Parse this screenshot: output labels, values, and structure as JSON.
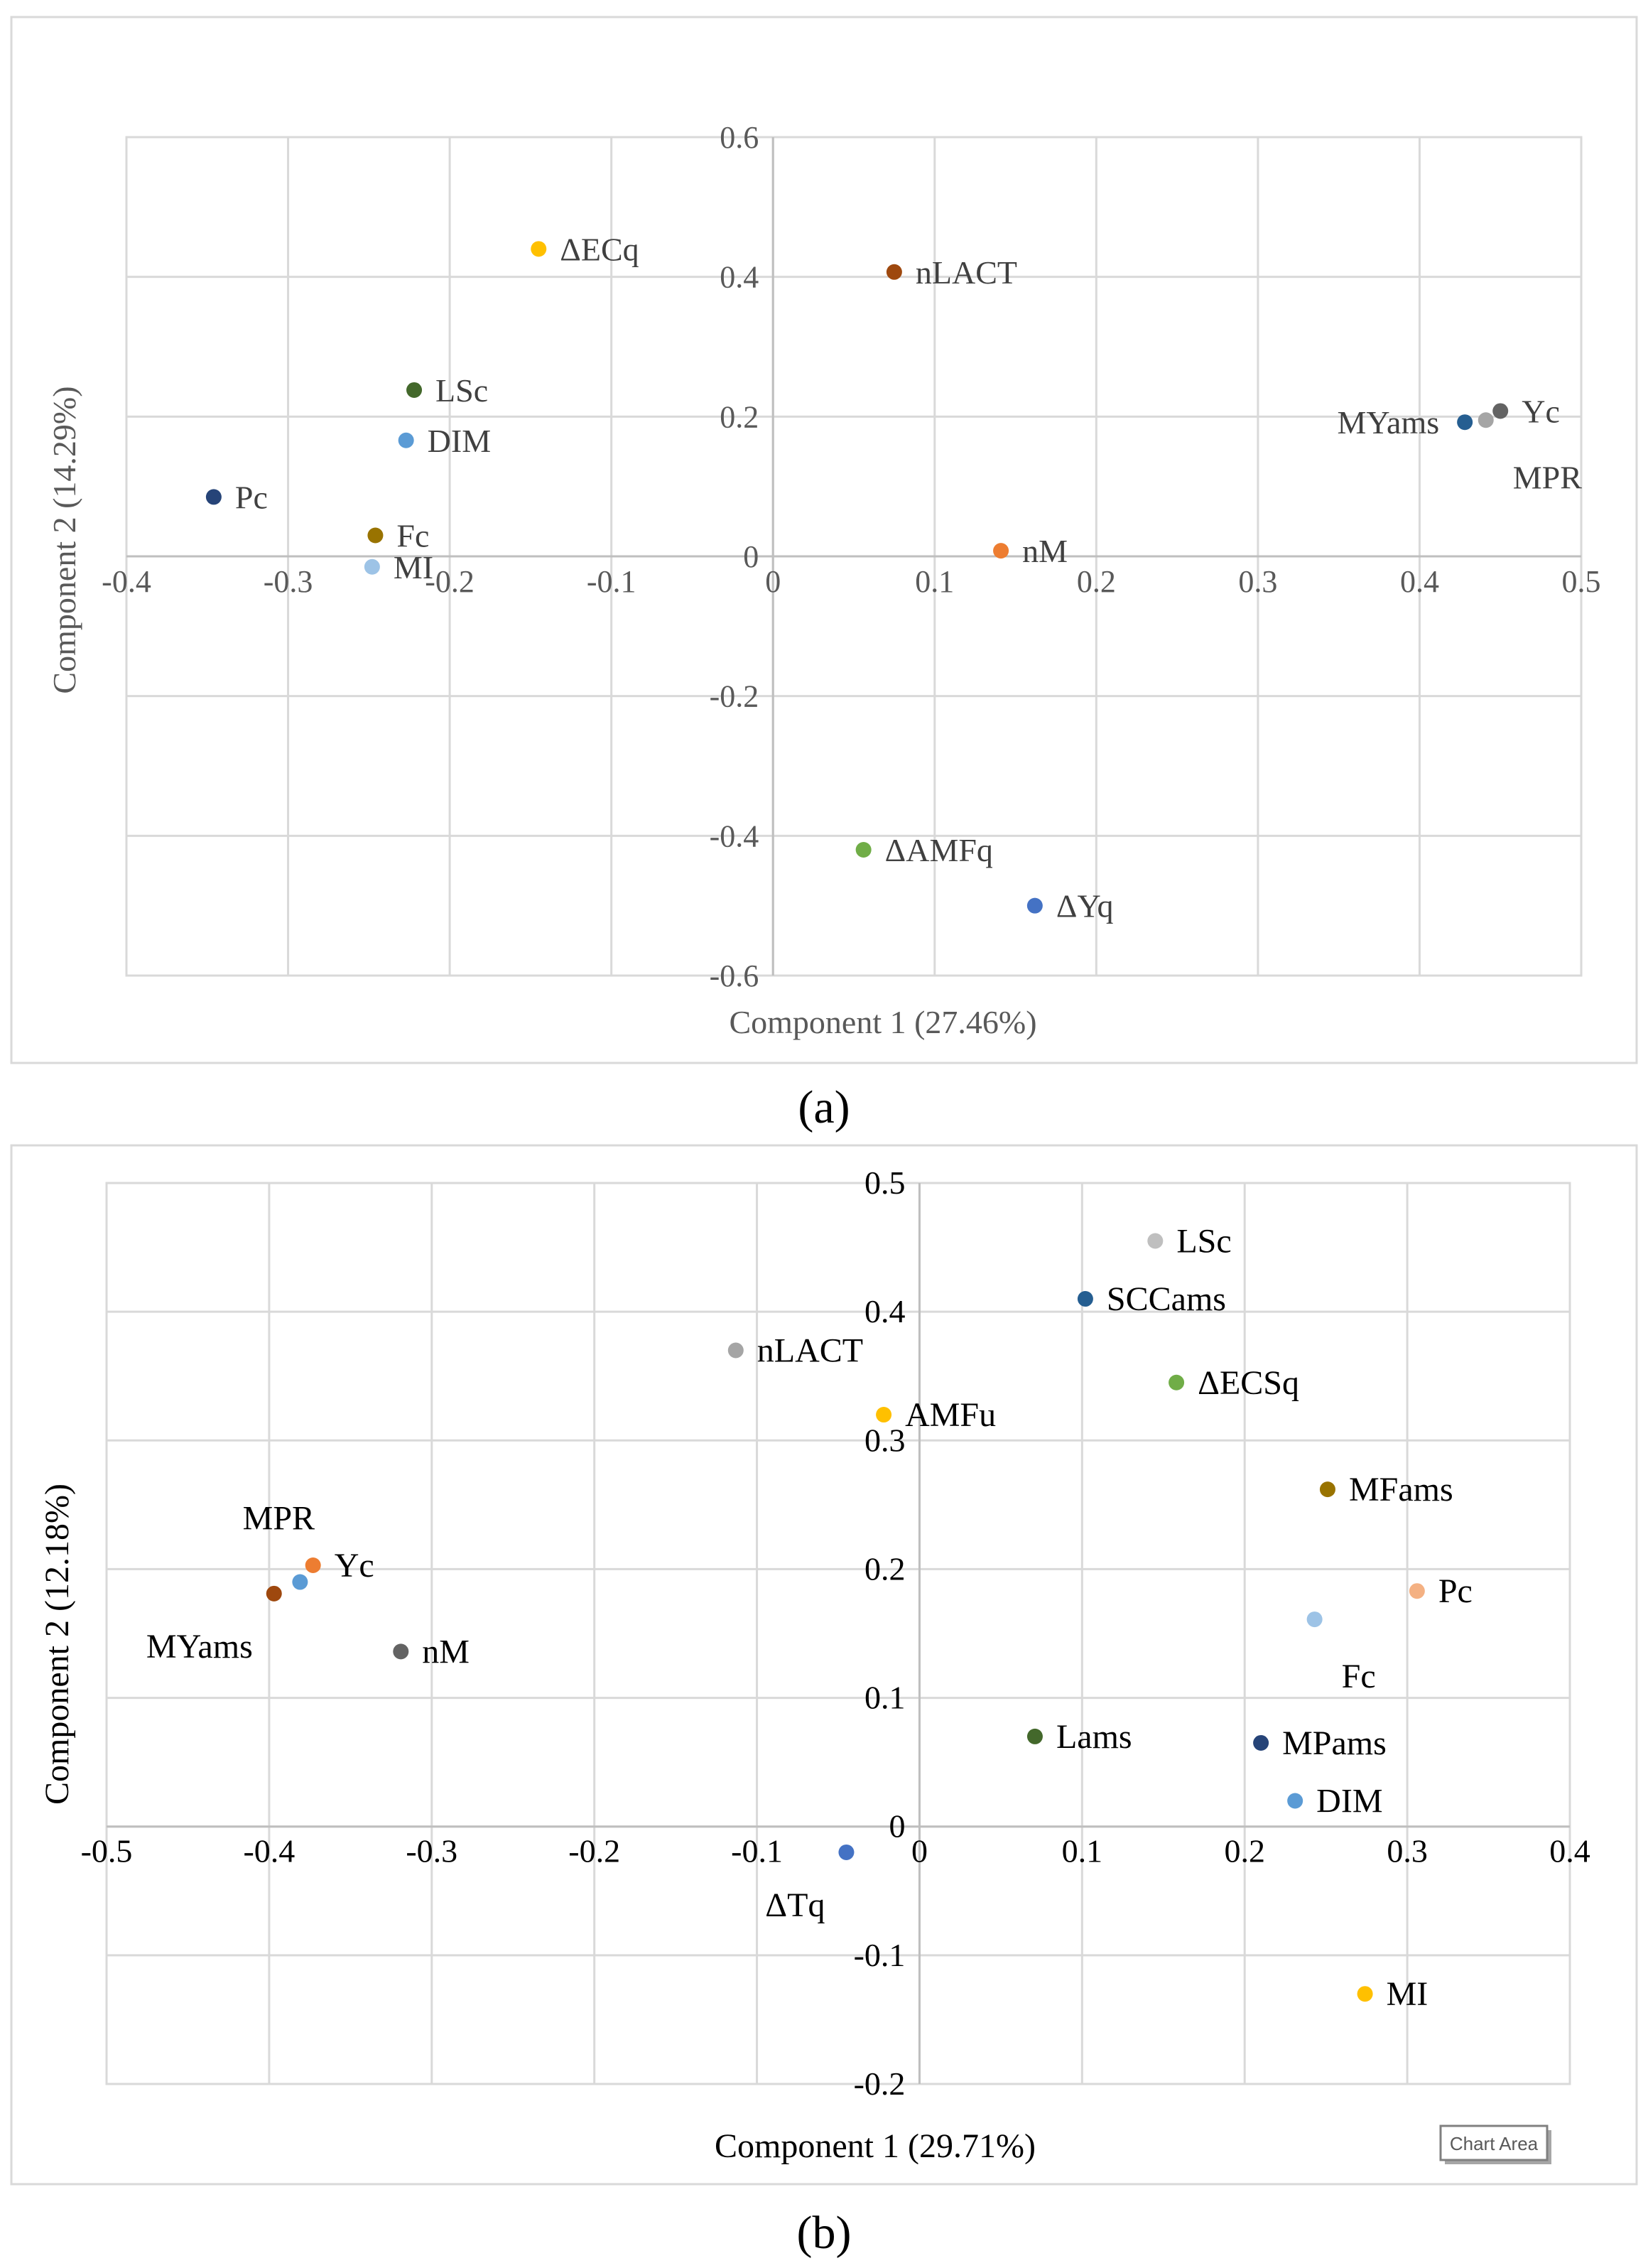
{
  "chart_data": [
    {
      "type": "scatter",
      "panel": "a",
      "caption": "(a)",
      "xlabel": "Component 1 (27.46%)",
      "ylabel": "Component 2 (14.29%)",
      "xlim": [
        -0.4,
        0.5
      ],
      "ylim": [
        -0.6,
        0.6
      ],
      "x_ticks": [
        "-0.4",
        "-0.3",
        "-0.2",
        "-0.1",
        "0",
        "0.1",
        "0.2",
        "0.3",
        "0.4",
        "0.5"
      ],
      "y_ticks": [
        "-0.6",
        "-0.4",
        "-0.2",
        "0",
        "0.2",
        "0.4",
        "0.6"
      ],
      "grid": true,
      "points": [
        {
          "label": "ΔECq",
          "x": -0.145,
          "y": 0.44,
          "color": "#FFC000",
          "label_pos": "right"
        },
        {
          "label": "nLACT",
          "x": 0.075,
          "y": 0.407,
          "color": "#9E480E",
          "label_pos": "right"
        },
        {
          "label": "LSc",
          "x": -0.222,
          "y": 0.238,
          "color": "#43682B",
          "label_pos": "right"
        },
        {
          "label": "DIM",
          "x": -0.227,
          "y": 0.166,
          "color": "#5B9BD5",
          "label_pos": "right"
        },
        {
          "label": "Pc",
          "x": -0.346,
          "y": 0.085,
          "color": "#264478",
          "label_pos": "right"
        },
        {
          "label": "Fc",
          "x": -0.246,
          "y": 0.03,
          "color": "#997300",
          "label_pos": "right"
        },
        {
          "label": "MI",
          "x": -0.248,
          "y": -0.015,
          "color": "#9DC3E6",
          "label_pos": "right"
        },
        {
          "label": "nM",
          "x": 0.141,
          "y": 0.008,
          "color": "#ED7D31",
          "label_pos": "right"
        },
        {
          "label": "MYams",
          "x": 0.428,
          "y": 0.192,
          "color": "#255E91",
          "label_pos": "left"
        },
        {
          "label": "Yc",
          "x": 0.45,
          "y": 0.208,
          "color": "#636363",
          "label_pos": "right"
        },
        {
          "label": "MPR",
          "x": 0.441,
          "y": 0.195,
          "color": "#A5A5A5",
          "label_pos": "below-right"
        },
        {
          "label": "ΔAMFq",
          "x": 0.056,
          "y": -0.42,
          "color": "#70AD47",
          "label_pos": "right"
        },
        {
          "label": "ΔYq",
          "x": 0.162,
          "y": -0.5,
          "color": "#4472C4",
          "label_pos": "right"
        }
      ]
    },
    {
      "type": "scatter",
      "panel": "b",
      "caption": "(b)",
      "xlabel": "Component 1 (29.71%)",
      "ylabel": "Component 2 (12.18%)",
      "xlim": [
        -0.5,
        0.4
      ],
      "ylim": [
        -0.2,
        0.5
      ],
      "x_ticks": [
        "-0.5",
        "-0.4",
        "-0.3",
        "-0.2",
        "-0.1",
        "0",
        "0.1",
        "0.2",
        "0.3",
        "0.4"
      ],
      "y_ticks": [
        "-0.2",
        "-0.1",
        "0",
        "0.1",
        "0.2",
        "0.3",
        "0.4",
        "0.5"
      ],
      "grid": true,
      "tooltip": "Chart Area",
      "points": [
        {
          "label": "LSc",
          "x": 0.145,
          "y": 0.455,
          "color": "#BFBFBF",
          "label_pos": "right"
        },
        {
          "label": "SCCams",
          "x": 0.102,
          "y": 0.41,
          "color": "#255E91",
          "label_pos": "right"
        },
        {
          "label": "nLACT",
          "x": -0.113,
          "y": 0.37,
          "color": "#A5A5A5",
          "label_pos": "right"
        },
        {
          "label": "ΔECSq",
          "x": 0.158,
          "y": 0.345,
          "color": "#70AD47",
          "label_pos": "right"
        },
        {
          "label": "AMFu",
          "x": -0.022,
          "y": 0.32,
          "color": "#FFC000",
          "label_pos": "right"
        },
        {
          "label": "MFams",
          "x": 0.251,
          "y": 0.262,
          "color": "#997300",
          "label_pos": "right"
        },
        {
          "label": "Pc",
          "x": 0.306,
          "y": 0.183,
          "color": "#F4B183",
          "label_pos": "right"
        },
        {
          "label": "Fc",
          "x": 0.243,
          "y": 0.161,
          "color": "#9DC3E6",
          "label_pos": "below-right"
        },
        {
          "label": "MPR",
          "x": -0.381,
          "y": 0.19,
          "color": "#5B9BD5",
          "label_pos": "above-left"
        },
        {
          "label": "Yc",
          "x": -0.373,
          "y": 0.203,
          "color": "#ED7D31",
          "label_pos": "right"
        },
        {
          "label": "MYams",
          "x": -0.397,
          "y": 0.181,
          "color": "#9E480E",
          "label_pos": "below-left"
        },
        {
          "label": "nM",
          "x": -0.319,
          "y": 0.136,
          "color": "#636363",
          "label_pos": "right"
        },
        {
          "label": "Lams",
          "x": 0.071,
          "y": 0.07,
          "color": "#43682B",
          "label_pos": "right"
        },
        {
          "label": "MPams",
          "x": 0.21,
          "y": 0.065,
          "color": "#264478",
          "label_pos": "right"
        },
        {
          "label": "DIM",
          "x": 0.231,
          "y": 0.02,
          "color": "#5B9BD5",
          "label_pos": "right"
        },
        {
          "label": "ΔTq",
          "x": -0.045,
          "y": -0.02,
          "color": "#4472C4",
          "label_pos": "below-left"
        },
        {
          "label": "MI",
          "x": 0.274,
          "y": -0.13,
          "color": "#FFC000",
          "label_pos": "right"
        }
      ]
    }
  ]
}
